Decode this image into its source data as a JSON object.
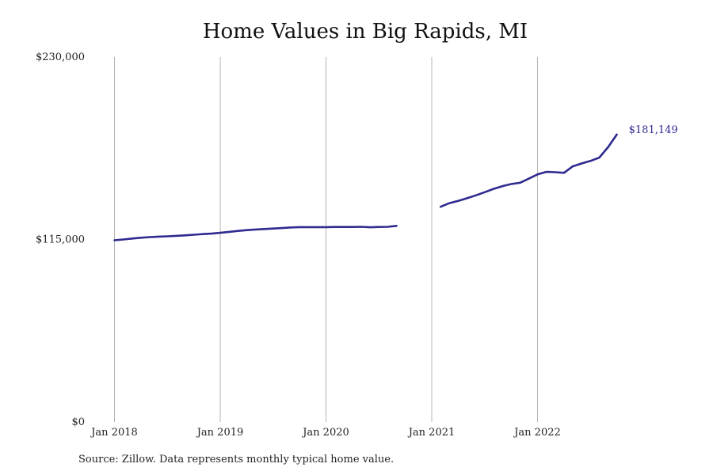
{
  "chart_data": {
    "type": "line",
    "title": "Home Values in Big Rapids, MI",
    "source": "Source: Zillow. Data represents monthly typical home value.",
    "xlabel": "",
    "ylabel": "",
    "ylim": [
      0,
      230000
    ],
    "y_ticks": [
      {
        "value": 0,
        "label": "$0"
      },
      {
        "value": 115000,
        "label": "$115,000"
      },
      {
        "value": 230000,
        "label": "$230,000"
      }
    ],
    "x_ticks": [
      {
        "value": "2018-01",
        "label": "Jan 2018"
      },
      {
        "value": "2019-01",
        "label": "Jan 2019"
      },
      {
        "value": "2020-01",
        "label": "Jan 2020"
      },
      {
        "value": "2021-01",
        "label": "Jan 2021"
      },
      {
        "value": "2022-01",
        "label": "Jan 2022"
      }
    ],
    "xlim": [
      "2018-01",
      "2022-12"
    ],
    "grid": {
      "vertical": true,
      "horizontal": false
    },
    "legend": "none",
    "line_color": "#2e2a8f",
    "end_label": "$181,149",
    "series": [
      {
        "segments": [
          [
            {
              "x": "2018-01",
              "y": 114500
            },
            {
              "x": "2018-02",
              "y": 115000
            },
            {
              "x": "2018-03",
              "y": 115600
            },
            {
              "x": "2018-04",
              "y": 116100
            },
            {
              "x": "2018-05",
              "y": 116500
            },
            {
              "x": "2018-06",
              "y": 116800
            },
            {
              "x": "2018-07",
              "y": 117000
            },
            {
              "x": "2018-08",
              "y": 117300
            },
            {
              "x": "2018-09",
              "y": 117600
            },
            {
              "x": "2018-10",
              "y": 118000
            },
            {
              "x": "2018-11",
              "y": 118400
            },
            {
              "x": "2018-12",
              "y": 118700
            },
            {
              "x": "2019-01",
              "y": 119200
            },
            {
              "x": "2019-02",
              "y": 119800
            },
            {
              "x": "2019-03",
              "y": 120400
            },
            {
              "x": "2019-04",
              "y": 120900
            },
            {
              "x": "2019-05",
              "y": 121300
            },
            {
              "x": "2019-06",
              "y": 121600
            },
            {
              "x": "2019-07",
              "y": 121900
            },
            {
              "x": "2019-08",
              "y": 122200
            },
            {
              "x": "2019-09",
              "y": 122600
            },
            {
              "x": "2019-10",
              "y": 122800
            },
            {
              "x": "2019-11",
              "y": 122800
            },
            {
              "x": "2019-12",
              "y": 122800
            },
            {
              "x": "2020-01",
              "y": 122800
            },
            {
              "x": "2020-02",
              "y": 122900
            },
            {
              "x": "2020-03",
              "y": 122900
            },
            {
              "x": "2020-04",
              "y": 122900
            },
            {
              "x": "2020-05",
              "y": 123000
            },
            {
              "x": "2020-06",
              "y": 122700
            },
            {
              "x": "2020-07",
              "y": 122900
            },
            {
              "x": "2020-08",
              "y": 123000
            },
            {
              "x": "2020-09",
              "y": 123600
            }
          ],
          [
            {
              "x": "2021-02",
              "y": 135600
            },
            {
              "x": "2021-03",
              "y": 137900
            },
            {
              "x": "2021-04",
              "y": 139300
            },
            {
              "x": "2021-05",
              "y": 141000
            },
            {
              "x": "2021-06",
              "y": 142800
            },
            {
              "x": "2021-07",
              "y": 144800
            },
            {
              "x": "2021-08",
              "y": 146900
            },
            {
              "x": "2021-09",
              "y": 148600
            },
            {
              "x": "2021-10",
              "y": 149900
            },
            {
              "x": "2021-11",
              "y": 150700
            },
            {
              "x": "2021-12",
              "y": 153300
            },
            {
              "x": "2022-01",
              "y": 156000
            },
            {
              "x": "2022-02",
              "y": 157600
            },
            {
              "x": "2022-03",
              "y": 157400
            },
            {
              "x": "2022-04",
              "y": 157000
            },
            {
              "x": "2022-05",
              "y": 161100
            },
            {
              "x": "2022-06",
              "y": 162900
            },
            {
              "x": "2022-07",
              "y": 164500
            },
            {
              "x": "2022-08",
              "y": 166600
            },
            {
              "x": "2022-09",
              "y": 173100
            },
            {
              "x": "2022-10",
              "y": 181149
            }
          ]
        ]
      }
    ]
  }
}
